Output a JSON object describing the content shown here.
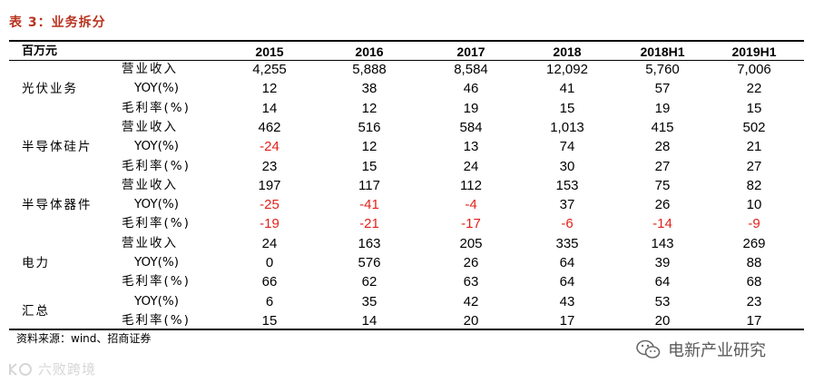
{
  "title": "表 3：业务拆分",
  "table": {
    "unit_label": "百万元",
    "years": [
      "2015",
      "2016",
      "2017",
      "2018",
      "2018H1",
      "2019H1"
    ],
    "segments": [
      {
        "name": "光伏业务",
        "rows": [
          {
            "metric": "营业收入",
            "values": [
              "4,255",
              "5,888",
              "8,584",
              "12,092",
              "5,760",
              "7,006"
            ]
          },
          {
            "metric": "YOY(%)",
            "values": [
              "12",
              "38",
              "46",
              "41",
              "57",
              "22"
            ]
          },
          {
            "metric": "毛利率(%)",
            "values": [
              "14",
              "12",
              "19",
              "15",
              "19",
              "15"
            ]
          }
        ]
      },
      {
        "name": "半导体硅片",
        "rows": [
          {
            "metric": "营业收入",
            "values": [
              "462",
              "516",
              "584",
              "1,013",
              "415",
              "502"
            ]
          },
          {
            "metric": "YOY(%)",
            "values": [
              "-24",
              "12",
              "13",
              "74",
              "28",
              "21"
            ]
          },
          {
            "metric": "毛利率(%)",
            "values": [
              "23",
              "15",
              "24",
              "30",
              "27",
              "27"
            ]
          }
        ]
      },
      {
        "name": "半导体器件",
        "rows": [
          {
            "metric": "营业收入",
            "values": [
              "197",
              "117",
              "112",
              "153",
              "75",
              "82"
            ]
          },
          {
            "metric": "YOY(%)",
            "values": [
              "-25",
              "-41",
              "-4",
              "37",
              "26",
              "10"
            ]
          },
          {
            "metric": "毛利率(%)",
            "values": [
              "-19",
              "-21",
              "-17",
              "-6",
              "-14",
              "-9"
            ]
          }
        ]
      },
      {
        "name": "电力",
        "rows": [
          {
            "metric": "营业收入",
            "values": [
              "24",
              "163",
              "205",
              "335",
              "143",
              "269"
            ]
          },
          {
            "metric": "YOY(%)",
            "values": [
              "0",
              "576",
              "26",
              "64",
              "39",
              "88"
            ]
          },
          {
            "metric": "毛利率(%)",
            "values": [
              "66",
              "62",
              "63",
              "64",
              "64",
              "68"
            ]
          }
        ]
      },
      {
        "name": "汇总",
        "rows": [
          {
            "metric": "YOY(%)",
            "values": [
              "6",
              "35",
              "42",
              "43",
              "53",
              "23"
            ]
          },
          {
            "metric": "毛利率(%)",
            "values": [
              "15",
              "14",
              "20",
              "17",
              "20",
              "17"
            ]
          }
        ]
      }
    ]
  },
  "source": "资料来源：wind、招商证券",
  "watermark_left": "六败跨境",
  "watermark_right": "电新产业研究",
  "colors": {
    "title": "#b8321e",
    "negative": "#e3211b",
    "watermark_left": "#d6d6d6",
    "watermark_right": "#5a5a5a"
  }
}
